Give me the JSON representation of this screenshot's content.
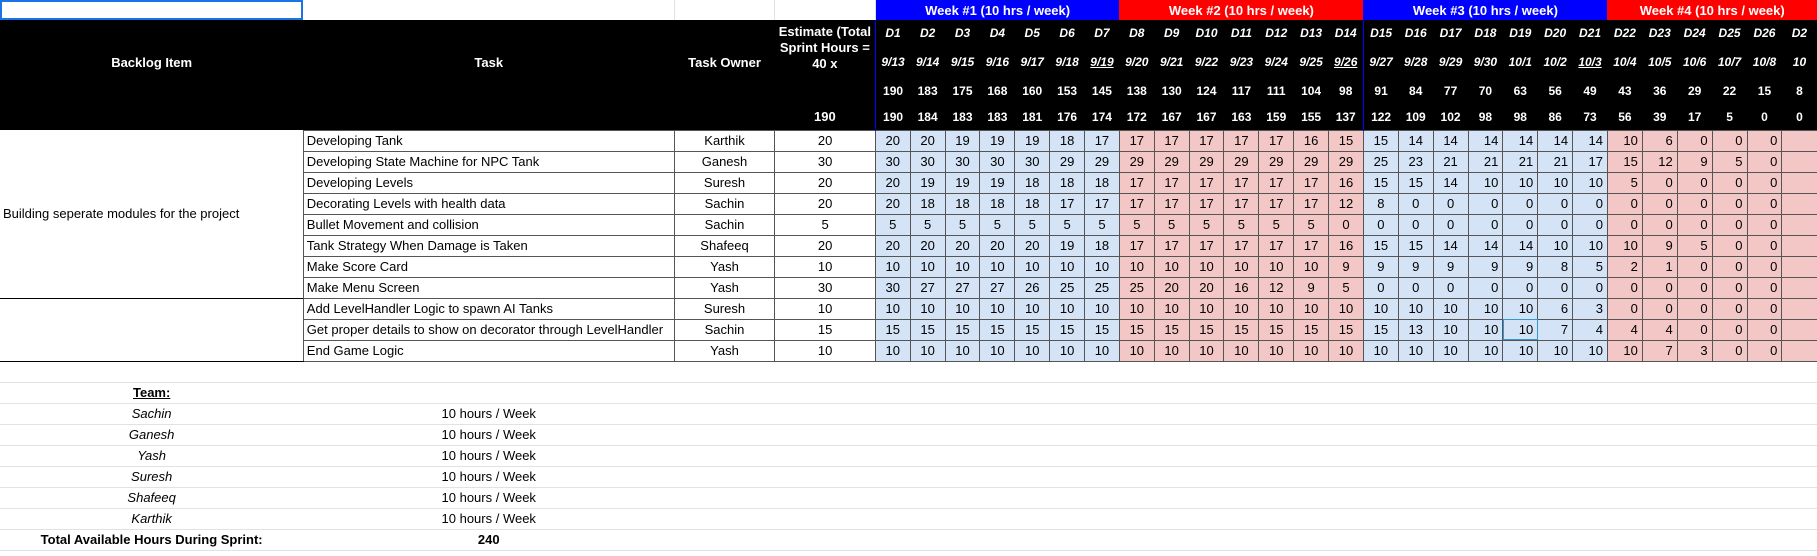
{
  "weeks": [
    {
      "label": "Week #1 (10 hrs / week)",
      "color": "#0000ff"
    },
    {
      "label": "Week #2 (10 hrs / week)",
      "color": "#ff0000"
    },
    {
      "label": "Week #3 (10 hrs / week)",
      "color": "#0000ff"
    },
    {
      "label": "Week #4 (10 hrs / week)",
      "color": "#ff0000"
    }
  ],
  "header": {
    "backlog": "Backlog Item",
    "task": "Task",
    "owner": "Task Owner",
    "estimate": "Estimate (Total Sprint Hours = 40 x",
    "estimate_total": "190"
  },
  "days": [
    "D1",
    "D2",
    "D3",
    "D4",
    "D5",
    "D6",
    "D7",
    "D8",
    "D9",
    "D10",
    "D11",
    "D12",
    "D13",
    "D14",
    "D15",
    "D16",
    "D17",
    "D18",
    "D19",
    "D20",
    "D21",
    "D22",
    "D23",
    "D24",
    "D25",
    "D26",
    "D2"
  ],
  "dates": [
    "9/13",
    "9/14",
    "9/15",
    "9/16",
    "9/17",
    "9/18",
    "9/19",
    "9/20",
    "9/21",
    "9/22",
    "9/23",
    "9/24",
    "9/25",
    "9/26",
    "9/27",
    "9/28",
    "9/29",
    "9/30",
    "10/1",
    "10/2",
    "10/3",
    "10/4",
    "10/5",
    "10/6",
    "10/7",
    "10/8",
    "10"
  ],
  "ideal": [
    "190",
    "183",
    "175",
    "168",
    "160",
    "153",
    "145",
    "138",
    "130",
    "124",
    "117",
    "111",
    "104",
    "98",
    "91",
    "84",
    "77",
    "70",
    "63",
    "56",
    "49",
    "43",
    "36",
    "29",
    "22",
    "15",
    "8"
  ],
  "actual": [
    "190",
    "184",
    "183",
    "183",
    "181",
    "176",
    "174",
    "172",
    "167",
    "167",
    "163",
    "159",
    "155",
    "137",
    "122",
    "109",
    "102",
    "98",
    "98",
    "86",
    "73",
    "56",
    "39",
    "17",
    "5",
    "0",
    "0"
  ],
  "backlog_item": "Building seperate modules for the project",
  "tasks": [
    {
      "task": "Developing Tank",
      "owner": "Karthik",
      "est": "20",
      "vals": [
        "20",
        "20",
        "19",
        "19",
        "19",
        "18",
        "17",
        "17",
        "17",
        "17",
        "17",
        "17",
        "16",
        "15",
        "15",
        "14",
        "14",
        "14",
        "14",
        "14",
        "14",
        "10",
        "6",
        "0",
        "0",
        "0",
        ""
      ]
    },
    {
      "task": "Developing State Machine for NPC Tank",
      "owner": "Ganesh",
      "est": "30",
      "vals": [
        "30",
        "30",
        "30",
        "30",
        "30",
        "29",
        "29",
        "29",
        "29",
        "29",
        "29",
        "29",
        "29",
        "29",
        "25",
        "23",
        "21",
        "21",
        "21",
        "21",
        "17",
        "15",
        "12",
        "9",
        "5",
        "0",
        ""
      ]
    },
    {
      "task": "Developing Levels",
      "owner": "Suresh",
      "est": "20",
      "vals": [
        "20",
        "19",
        "19",
        "19",
        "18",
        "18",
        "18",
        "17",
        "17",
        "17",
        "17",
        "17",
        "17",
        "16",
        "15",
        "15",
        "14",
        "10",
        "10",
        "10",
        "10",
        "5",
        "0",
        "0",
        "0",
        "0",
        ""
      ]
    },
    {
      "task": "Decorating Levels with health data",
      "owner": "Sachin",
      "est": "20",
      "vals": [
        "20",
        "18",
        "18",
        "18",
        "18",
        "17",
        "17",
        "17",
        "17",
        "17",
        "17",
        "17",
        "17",
        "12",
        "8",
        "0",
        "0",
        "0",
        "0",
        "0",
        "0",
        "0",
        "0",
        "0",
        "0",
        "0",
        ""
      ]
    },
    {
      "task": "Bullet Movement and collision",
      "owner": "Sachin",
      "est": "5",
      "vals": [
        "5",
        "5",
        "5",
        "5",
        "5",
        "5",
        "5",
        "5",
        "5",
        "5",
        "5",
        "5",
        "5",
        "0",
        "0",
        "0",
        "0",
        "0",
        "0",
        "0",
        "0",
        "0",
        "0",
        "0",
        "0",
        "0",
        ""
      ]
    },
    {
      "task": "Tank Strategy When Damage is Taken",
      "owner": "Shafeeq",
      "est": "20",
      "vals": [
        "20",
        "20",
        "20",
        "20",
        "20",
        "19",
        "18",
        "17",
        "17",
        "17",
        "17",
        "17",
        "17",
        "16",
        "15",
        "15",
        "14",
        "14",
        "14",
        "10",
        "10",
        "10",
        "9",
        "5",
        "0",
        "0",
        ""
      ]
    },
    {
      "task": "Make Score Card",
      "owner": "Yash",
      "est": "10",
      "vals": [
        "10",
        "10",
        "10",
        "10",
        "10",
        "10",
        "10",
        "10",
        "10",
        "10",
        "10",
        "10",
        "10",
        "9",
        "9",
        "9",
        "9",
        "9",
        "9",
        "8",
        "5",
        "2",
        "1",
        "0",
        "0",
        "0",
        ""
      ]
    },
    {
      "task": "Make Menu Screen",
      "owner": "Yash",
      "est": "30",
      "vals": [
        "30",
        "27",
        "27",
        "27",
        "26",
        "25",
        "25",
        "25",
        "20",
        "20",
        "16",
        "12",
        "9",
        "5",
        "0",
        "0",
        "0",
        "0",
        "0",
        "0",
        "0",
        "0",
        "0",
        "0",
        "0",
        "0",
        ""
      ]
    },
    {
      "task": "Add LevelHandler Logic to spawn AI Tanks",
      "owner": "Suresh",
      "est": "10",
      "vals": [
        "10",
        "10",
        "10",
        "10",
        "10",
        "10",
        "10",
        "10",
        "10",
        "10",
        "10",
        "10",
        "10",
        "10",
        "10",
        "10",
        "10",
        "10",
        "10",
        "6",
        "3",
        "0",
        "0",
        "0",
        "0",
        "0",
        ""
      ]
    },
    {
      "task": "Get proper details to show on decorator through LevelHandler",
      "owner": "Sachin",
      "est": "15",
      "vals": [
        "15",
        "15",
        "15",
        "15",
        "15",
        "15",
        "15",
        "15",
        "15",
        "15",
        "15",
        "15",
        "15",
        "15",
        "15",
        "13",
        "10",
        "10",
        "10",
        "7",
        "4",
        "4",
        "4",
        "0",
        "0",
        "0",
        ""
      ]
    },
    {
      "task": "End Game Logic",
      "owner": "Yash",
      "est": "10",
      "vals": [
        "10",
        "10",
        "10",
        "10",
        "10",
        "10",
        "10",
        "10",
        "10",
        "10",
        "10",
        "10",
        "10",
        "10",
        "10",
        "10",
        "10",
        "10",
        "10",
        "10",
        "10",
        "10",
        "7",
        "3",
        "0",
        "0",
        ""
      ]
    }
  ],
  "team": {
    "title": "Team:",
    "members": [
      {
        "name": "Sachin",
        "hours": "10 hours / Week"
      },
      {
        "name": "Ganesh",
        "hours": "10 hours / Week"
      },
      {
        "name": "Yash",
        "hours": "10 hours / Week"
      },
      {
        "name": "Suresh",
        "hours": "10 hours / Week"
      },
      {
        "name": "Shafeeq",
        "hours": "10 hours / Week"
      },
      {
        "name": "Karthik",
        "hours": "10 hours / Week"
      }
    ],
    "total_label": "Total Available Hours During Sprint:",
    "total_value": "240"
  },
  "colors": {
    "week_blue": "#0000ff",
    "week_red": "#ff0000",
    "cell_blue": "#d4e3f5",
    "cell_pink": "#f4c7c7",
    "header_bg": "#000000"
  }
}
